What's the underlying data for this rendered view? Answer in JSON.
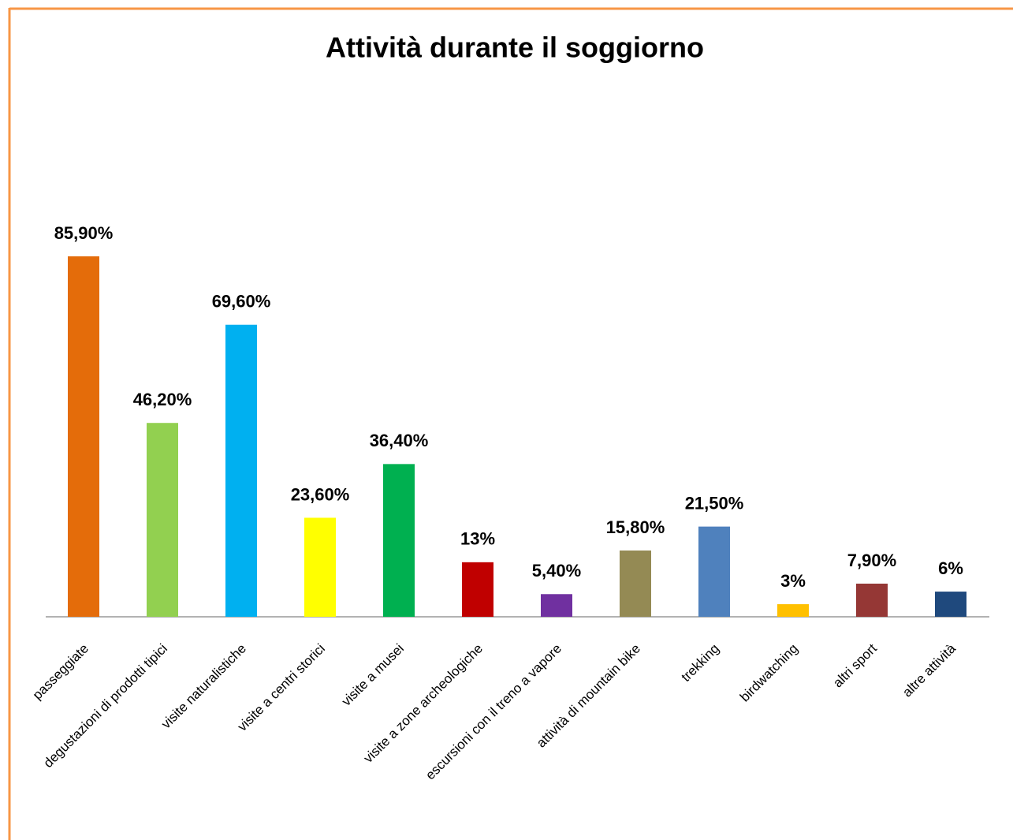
{
  "chart_data": {
    "type": "bar",
    "title": "Attività durante il soggiorno",
    "categories": [
      "passeggiate",
      "degustazioni di prodotti tipici",
      "visite naturalistiche",
      "visite a centri storici",
      "visite a musei",
      "visite a zone archeologiche",
      "escursioni con il treno a vapore",
      "attività di mountain bike",
      "trekking",
      "birdwatching",
      "altri sport",
      "altre attività"
    ],
    "values": [
      85.9,
      46.2,
      69.6,
      23.6,
      36.4,
      13,
      5.4,
      15.8,
      21.5,
      3,
      7.9,
      6
    ],
    "value_labels": [
      "85,90%",
      "46,20%",
      "69,60%",
      "23,60%",
      "36,40%",
      "13%",
      "5,40%",
      "15,80%",
      "21,50%",
      "3%",
      "7,90%",
      "6%"
    ],
    "colors": [
      "#e46c0a",
      "#92d050",
      "#00b0f0",
      "#ffff00",
      "#00b050",
      "#c00000",
      "#7030a0",
      "#948a54",
      "#4f81bd",
      "#ffc000",
      "#953735",
      "#1f497d"
    ],
    "ylim": [
      0,
      100
    ],
    "grid": false
  }
}
